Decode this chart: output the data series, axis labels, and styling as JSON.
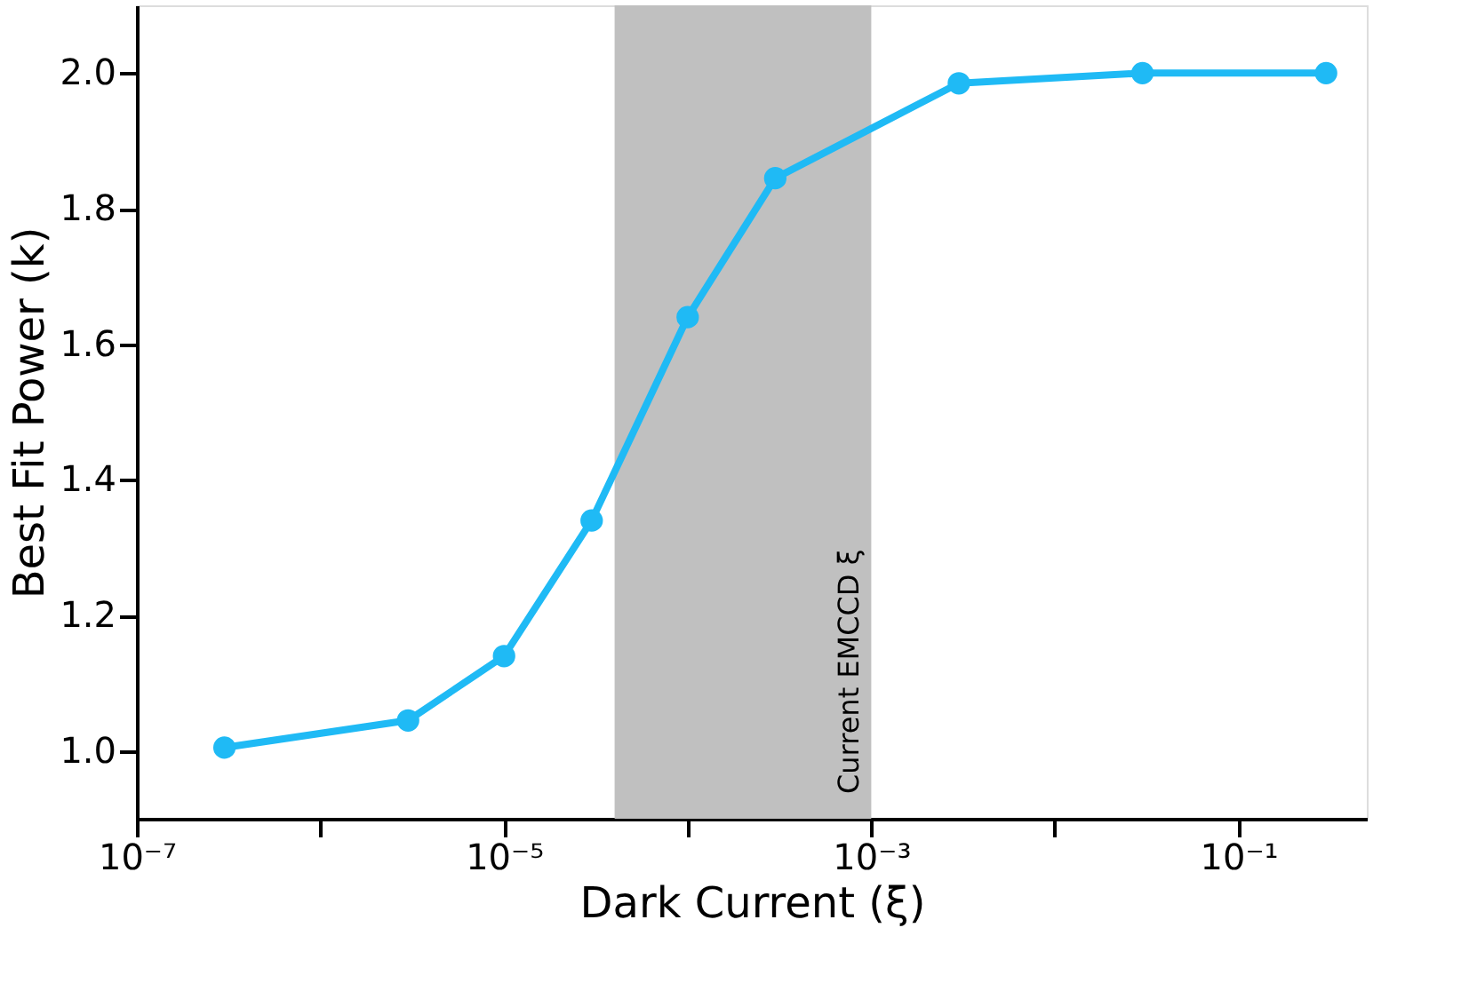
{
  "chart_data": {
    "type": "line",
    "xlabel": "Dark Current (ξ)",
    "ylabel": "Best Fit Power (k)",
    "x": [
      3e-07,
      3e-06,
      1e-05,
      3e-05,
      0.0001,
      0.0003,
      0.003,
      0.03,
      0.3
    ],
    "series": [
      {
        "color": "#1fbaf5",
        "values": [
          1.005,
          1.045,
          1.14,
          1.34,
          1.64,
          1.845,
          1.985,
          2.0,
          2.0
        ]
      }
    ],
    "log": "x",
    "marker": "circle",
    "line_style": "solid",
    "grid": false,
    "xlim": [
      1e-07,
      0.5
    ],
    "xticks": [
      {
        "value": 1e-07,
        "label": "10⁻⁷"
      },
      {
        "value": 1e-06,
        "label": null
      },
      {
        "value": 1e-05,
        "label": "10⁻⁵"
      },
      {
        "value": 0.0001,
        "label": null
      },
      {
        "value": 0.001,
        "label": "10⁻³"
      },
      {
        "value": 0.01,
        "label": null
      },
      {
        "value": 0.1,
        "label": "10⁻¹"
      }
    ],
    "ylim": [
      0.9,
      2.1
    ],
    "yticks": [
      {
        "value": 1.0,
        "label": "1.0"
      },
      {
        "value": 1.2,
        "label": "1.2"
      },
      {
        "value": 1.4,
        "label": "1.4"
      },
      {
        "value": 1.6,
        "label": "1.6"
      },
      {
        "value": 1.8,
        "label": "1.8"
      },
      {
        "value": 2.0,
        "label": "2.0"
      }
    ],
    "bands": [
      {
        "axis": "x",
        "from": 4e-05,
        "to": 0.001,
        "label": "Current EMCCD ξ",
        "color": "#c0c0c0"
      }
    ]
  }
}
